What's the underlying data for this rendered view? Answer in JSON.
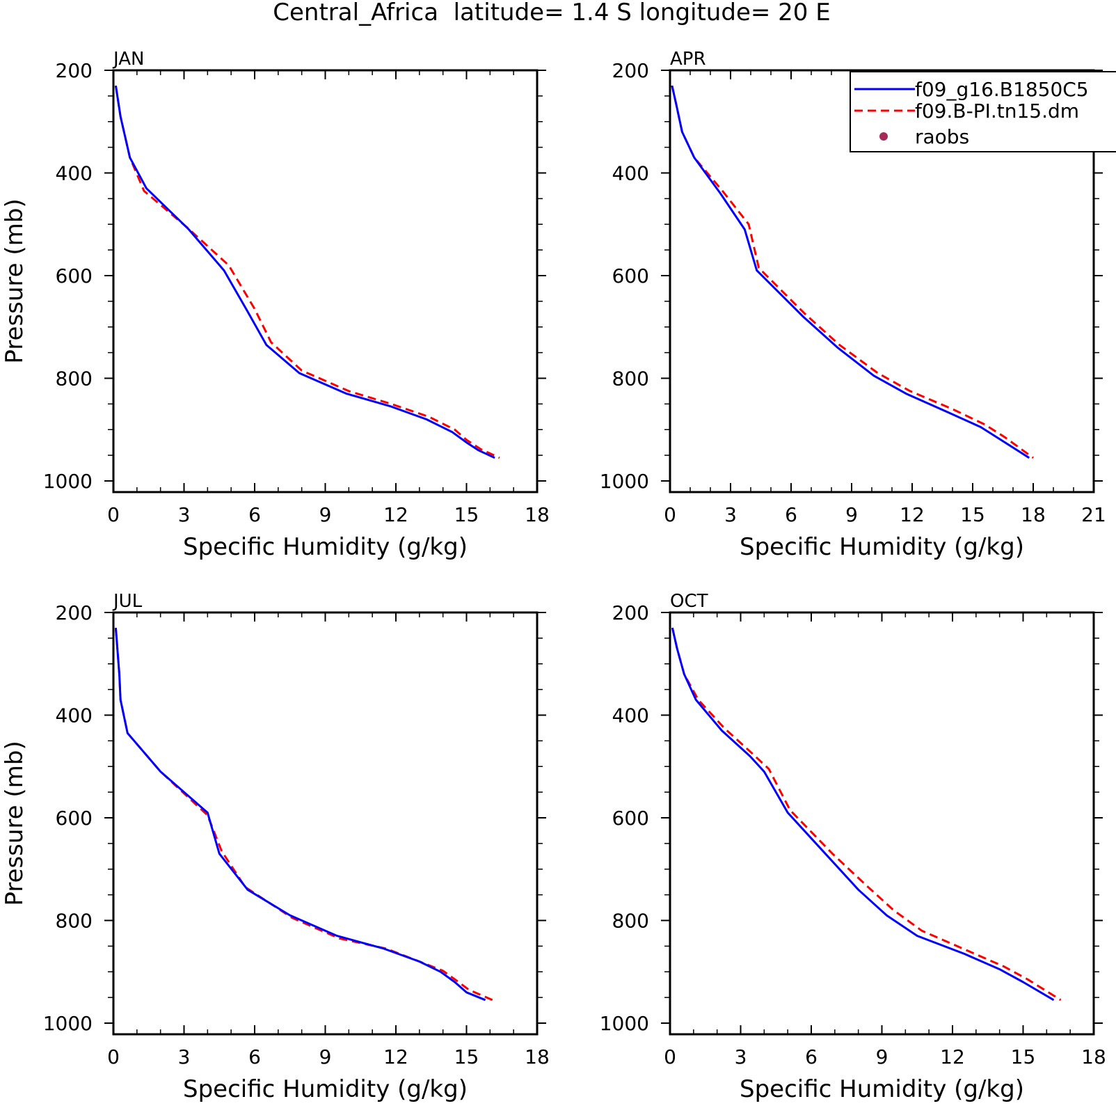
{
  "figure": {
    "title": "Central_Africa  latitude= 1.4 S longitude= 20 E"
  },
  "legend": {
    "entries": [
      {
        "label": "f09_g16.B1850C5",
        "color": "#0000ff",
        "style": "solid"
      },
      {
        "label": "f09.B-PI.tn15.dm",
        "color": "#ff0000",
        "style": "dashed"
      },
      {
        "label": "raobs",
        "color": "#a52a5a",
        "style": "marker"
      }
    ]
  },
  "chart_data": [
    {
      "type": "line",
      "title": "JAN",
      "xlabel": "Specific Humidity (g/kg)",
      "ylabel": "Pressure (mb)",
      "xlim": [
        0,
        18
      ],
      "ylim": [
        1000,
        200
      ],
      "y_inverted": true,
      "xticks": [
        0,
        3,
        6,
        9,
        12,
        15,
        18
      ],
      "yticks": [
        200,
        400,
        600,
        800,
        1000
      ],
      "series": [
        {
          "name": "f09_g16.B1850C5",
          "color": "#0000ff",
          "dash": false,
          "x": [
            0.1,
            0.3,
            0.7,
            1.4,
            3.2,
            4.7,
            5.7,
            6.5,
            7.9,
            9.9,
            11.8,
            13.3,
            14.4,
            15.0,
            15.5,
            16.2
          ],
          "y": [
            230,
            290,
            370,
            430,
            510,
            590,
            670,
            735,
            790,
            830,
            855,
            880,
            905,
            925,
            940,
            955
          ]
        },
        {
          "name": "f09.B-PI.tn15.dm",
          "color": "#ff0000",
          "dash": true,
          "x": [
            0.1,
            0.3,
            0.7,
            1.3,
            3.1,
            4.9,
            6.0,
            6.7,
            8.0,
            10.0,
            11.8,
            13.4,
            14.5,
            15.0,
            15.6,
            16.4
          ],
          "y": [
            230,
            290,
            370,
            435,
            505,
            580,
            665,
            730,
            785,
            825,
            850,
            875,
            900,
            920,
            938,
            955
          ]
        }
      ]
    },
    {
      "type": "line",
      "title": "APR",
      "xlabel": "Specific Humidity (g/kg)",
      "ylabel": "",
      "xlim": [
        0,
        21
      ],
      "ylim": [
        1000,
        200
      ],
      "y_inverted": true,
      "xticks": [
        0,
        3,
        6,
        9,
        12,
        15,
        18,
        21
      ],
      "yticks": [
        200,
        400,
        600,
        800,
        1000
      ],
      "series": [
        {
          "name": "f09_g16.B1850C5",
          "color": "#0000ff",
          "dash": false,
          "x": [
            0.1,
            0.3,
            0.6,
            1.2,
            2.5,
            3.7,
            4.3,
            6.6,
            8.3,
            10.1,
            11.7,
            13.7,
            15.4,
            16.4,
            17.8
          ],
          "y": [
            230,
            265,
            320,
            370,
            440,
            510,
            590,
            680,
            740,
            795,
            830,
            865,
            895,
            920,
            955
          ]
        },
        {
          "name": "f09.B-PI.tn15.dm",
          "color": "#ff0000",
          "dash": true,
          "x": [
            0.1,
            0.3,
            0.6,
            1.2,
            2.6,
            3.9,
            4.4,
            6.7,
            8.4,
            10.3,
            11.9,
            14.0,
            15.6,
            16.6,
            18.0
          ],
          "y": [
            230,
            265,
            320,
            370,
            435,
            500,
            585,
            675,
            735,
            790,
            825,
            860,
            890,
            915,
            955
          ]
        }
      ]
    },
    {
      "type": "line",
      "title": "JUL",
      "xlabel": "Specific Humidity (g/kg)",
      "ylabel": "Pressure (mb)",
      "xlim": [
        0,
        18
      ],
      "ylim": [
        1000,
        200
      ],
      "y_inverted": true,
      "xticks": [
        0,
        3,
        6,
        9,
        12,
        15,
        18
      ],
      "yticks": [
        200,
        400,
        600,
        800,
        1000
      ],
      "series": [
        {
          "name": "f09_g16.B1850C5",
          "color": "#0000ff",
          "dash": false,
          "x": [
            0.1,
            0.25,
            0.3,
            0.6,
            2.0,
            4.0,
            4.5,
            5.7,
            7.5,
            9.5,
            11.5,
            13.0,
            13.9,
            14.5,
            15.0,
            15.8
          ],
          "y": [
            230,
            320,
            370,
            435,
            510,
            590,
            670,
            740,
            790,
            830,
            855,
            880,
            900,
            920,
            940,
            955
          ]
        },
        {
          "name": "f09.B-PI.tn15.dm",
          "color": "#ff0000",
          "dash": true,
          "x": [
            0.1,
            0.25,
            0.3,
            0.6,
            2.0,
            4.0,
            4.6,
            5.6,
            7.6,
            9.6,
            11.6,
            13.0,
            14.0,
            14.6,
            15.1,
            16.1
          ],
          "y": [
            230,
            320,
            370,
            435,
            510,
            595,
            665,
            735,
            795,
            835,
            855,
            880,
            898,
            918,
            935,
            955
          ]
        }
      ]
    },
    {
      "type": "line",
      "title": "OCT",
      "xlabel": "Specific Humidity (g/kg)",
      "ylabel": "",
      "xlim": [
        0,
        18
      ],
      "ylim": [
        1000,
        200
      ],
      "y_inverted": true,
      "xticks": [
        0,
        3,
        6,
        9,
        12,
        15,
        18
      ],
      "yticks": [
        200,
        400,
        600,
        800,
        1000
      ],
      "series": [
        {
          "name": "f09_g16.B1850C5",
          "color": "#0000ff",
          "dash": false,
          "x": [
            0.1,
            0.3,
            0.6,
            1.1,
            2.2,
            3.4,
            4.0,
            5.0,
            6.7,
            8.0,
            9.2,
            10.5,
            12.5,
            14.0,
            15.0,
            16.3
          ],
          "y": [
            230,
            270,
            320,
            370,
            430,
            480,
            510,
            590,
            675,
            740,
            790,
            830,
            865,
            895,
            920,
            955
          ]
        },
        {
          "name": "f09.B-PI.tn15.dm",
          "color": "#ff0000",
          "dash": true,
          "x": [
            0.1,
            0.3,
            0.6,
            1.2,
            2.3,
            3.5,
            4.2,
            5.1,
            6.9,
            8.3,
            9.5,
            10.7,
            12.7,
            14.2,
            15.2,
            16.6
          ],
          "y": [
            230,
            270,
            320,
            370,
            425,
            475,
            505,
            585,
            670,
            730,
            780,
            820,
            860,
            890,
            915,
            955
          ]
        }
      ]
    }
  ]
}
